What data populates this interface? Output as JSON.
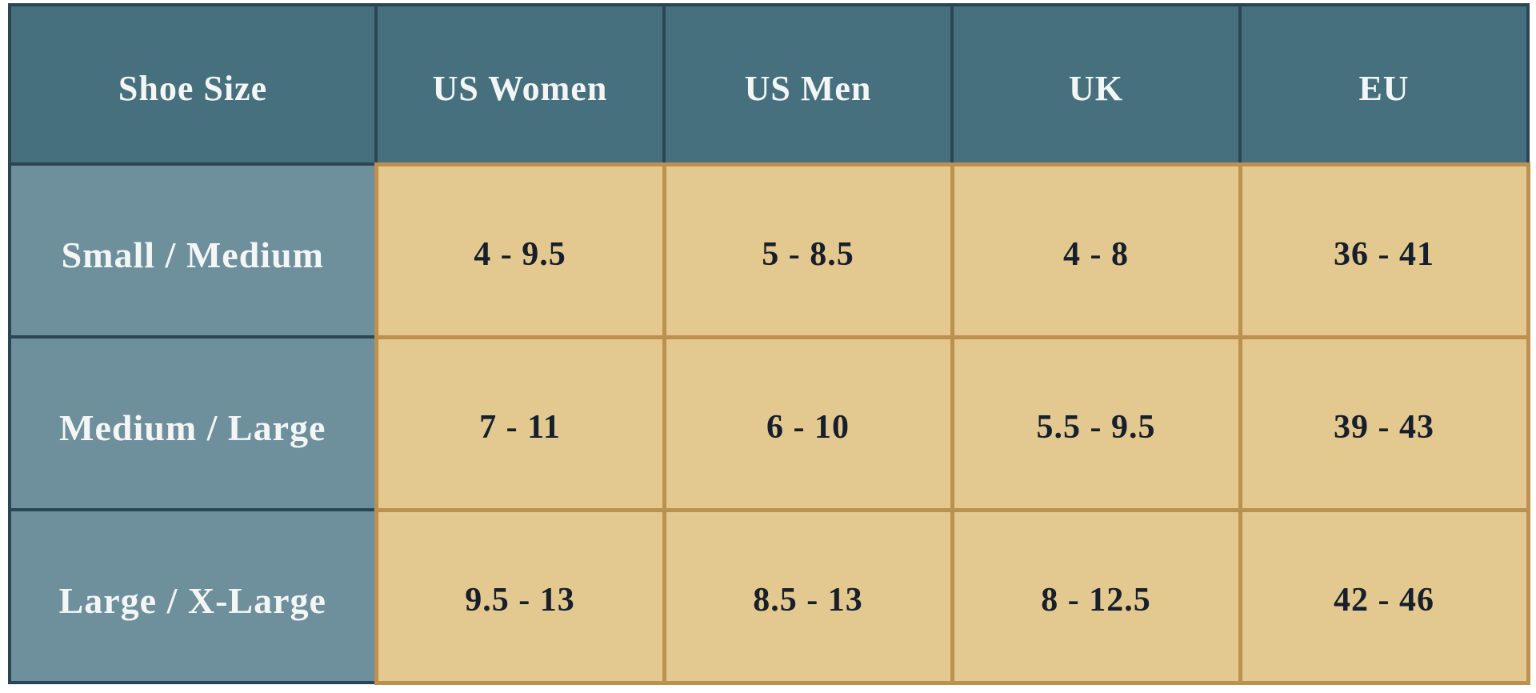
{
  "chart_data": {
    "type": "table",
    "columns": [
      "Shoe Size",
      "US Women",
      "US Men",
      "UK",
      "EU"
    ],
    "rows": [
      {
        "label": "Small / Medium",
        "values": [
          "4 - 9.5",
          "5 - 8.5",
          "4 - 8",
          "36 - 41"
        ]
      },
      {
        "label": "Medium / Large",
        "values": [
          "7 - 11",
          "6 - 10",
          "5.5 - 9.5",
          "39 - 43"
        ]
      },
      {
        "label": "Large / X-Large",
        "values": [
          "9.5 - 13",
          "8.5 - 13",
          "8 - 12.5",
          "42 - 46"
        ]
      }
    ],
    "layout_hints": {
      "header_position": "top",
      "row_label_column": "Shoe Size",
      "grid": "on"
    }
  },
  "colors": {
    "header_bg": "#46707e",
    "row_label_bg": "#6e8f9c",
    "cell_bg": "#e3c98f",
    "cell_border": "#bc9150",
    "dark_border": "#294652",
    "header_text": "#f3f6f5",
    "cell_text": "#161f2b",
    "page_bg": "#ffffff"
  }
}
